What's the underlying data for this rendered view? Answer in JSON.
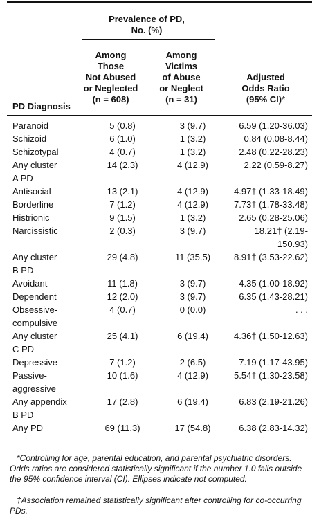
{
  "header": {
    "group_line1": "Prevalence of PD,",
    "group_line2": "No. (%)",
    "col0": "PD Diagnosis",
    "col1": [
      "Among",
      "Those",
      "Not Abused",
      "or Neglected",
      "(n = 608)"
    ],
    "col2": [
      "Among",
      "Victims",
      "of Abuse",
      "or Neglect",
      "(n = 31)"
    ],
    "col3": [
      "Adjusted",
      "Odds Ratio",
      "(95% CI)"
    ],
    "col3_mark": "*"
  },
  "rows": [
    {
      "diagnosis": [
        "Paranoid"
      ],
      "not_abused": "5 (0.8)",
      "abused": "3 (9.7)",
      "or": "6.59 (1.20-36.03)"
    },
    {
      "diagnosis": [
        "Schizoid"
      ],
      "not_abused": "6 (1.0)",
      "abused": "1 (3.2)",
      "or": "0.84 (0.08-8.44)"
    },
    {
      "diagnosis": [
        "Schizotypal"
      ],
      "not_abused": "4 (0.7)",
      "abused": "1 (3.2)",
      "or": "2.48 (0.22-28.23)"
    },
    {
      "diagnosis": [
        "Any cluster",
        "A PD"
      ],
      "not_abused": "14 (2.3)",
      "abused": "4 (12.9)",
      "or": "2.22 (0.59-8.27)"
    },
    {
      "diagnosis": [
        "Antisocial"
      ],
      "not_abused": "13 (2.1)",
      "abused": "4 (12.9)",
      "or": "4.97† (1.33-18.49)"
    },
    {
      "diagnosis": [
        "Borderline"
      ],
      "not_abused": "7 (1.2)",
      "abused": "4 (12.9)",
      "or": "7.73† (1.78-33.48)"
    },
    {
      "diagnosis": [
        "Histrionic"
      ],
      "not_abused": "9 (1.5)",
      "abused": "1 (3.2)",
      "or": "2.65 (0.28-25.06)"
    },
    {
      "diagnosis": [
        "Narcissistic"
      ],
      "not_abused": "2 (0.3)",
      "abused": "3 (9.7)",
      "or": "18.21† (2.19-150.93)"
    },
    {
      "diagnosis": [
        "Any cluster",
        "B PD"
      ],
      "not_abused": "29 (4.8)",
      "abused": "11 (35.5)",
      "or": "8.91† (3.53-22.62)"
    },
    {
      "diagnosis": [
        "Avoidant"
      ],
      "not_abused": "11 (1.8)",
      "abused": "3 (9.7)",
      "or": "4.35 (1.00-18.92)"
    },
    {
      "diagnosis": [
        "Dependent"
      ],
      "not_abused": "12 (2.0)",
      "abused": "3 (9.7)",
      "or": "6.35 (1.43-28.21)"
    },
    {
      "diagnosis": [
        "Obsessive-",
        "compulsive"
      ],
      "not_abused": "4 (0.7)",
      "abused": "0 (0.0)",
      "or": ". . ."
    },
    {
      "diagnosis": [
        "Any cluster",
        "C PD"
      ],
      "not_abused": "25 (4.1)",
      "abused": "6 (19.4)",
      "or": "4.36† (1.50-12.63)"
    },
    {
      "diagnosis": [
        "Depressive"
      ],
      "not_abused": "7 (1.2)",
      "abused": "2 (6.5)",
      "or": "7.19 (1.17-43.95)"
    },
    {
      "diagnosis": [
        "Passive-",
        "aggressive"
      ],
      "not_abused": "10 (1.6)",
      "abused": "4 (12.9)",
      "or": "5.54† (1.30-23.58)"
    },
    {
      "diagnosis": [
        "Any appendix",
        "B PD"
      ],
      "not_abused": "17 (2.8)",
      "abused": "6 (19.4)",
      "or": "6.83 (2.19-21.26)"
    },
    {
      "diagnosis": [
        "Any PD"
      ],
      "not_abused": "69 (11.3)",
      "abused": "17 (54.8)",
      "or": "6.38 (2.83-14.32)"
    }
  ],
  "footnotes": {
    "star": "*Controlling for age, parental education, and parental psychiatric disorders. Odds ratios are considered statistically significant if the number 1.0 falls outside the 95% confidence interval (CI). Ellipses indicate not computed.",
    "dagger": "†Association remained statistically significant after controlling for co-occurring PDs."
  }
}
